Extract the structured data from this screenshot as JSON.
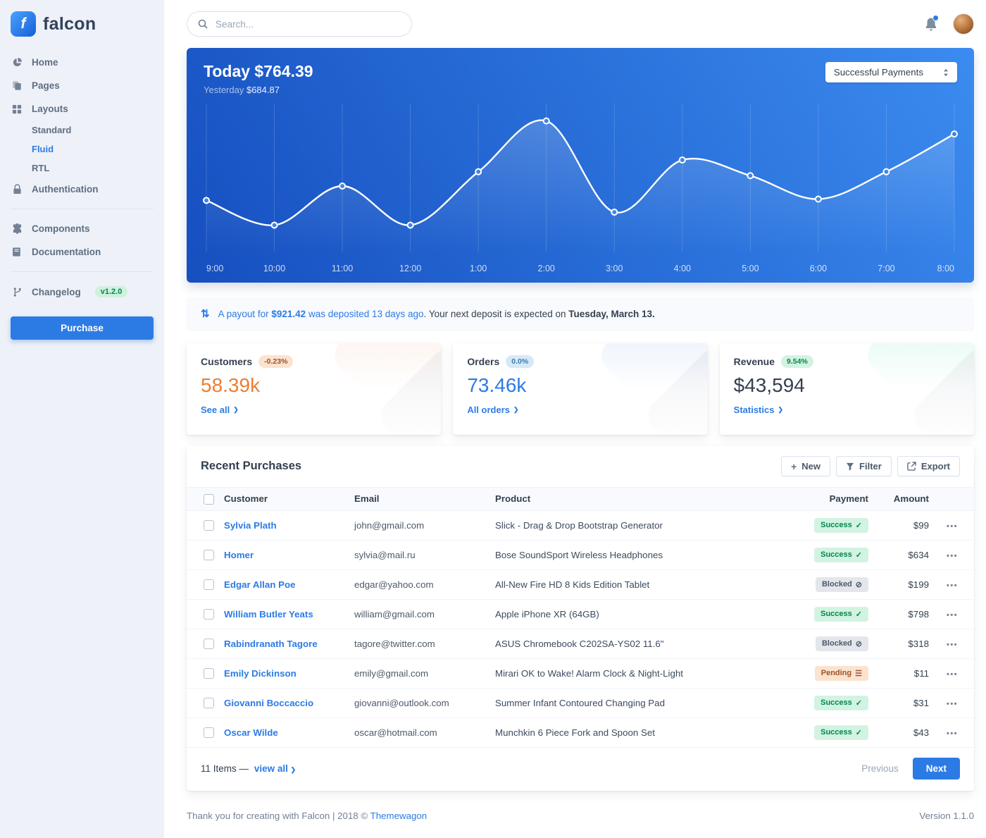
{
  "brand": {
    "name": "falcon"
  },
  "topbar": {
    "search_placeholder": "Search..."
  },
  "sidebar": {
    "items": [
      {
        "label": "Home"
      },
      {
        "label": "Pages"
      },
      {
        "label": "Layouts"
      },
      {
        "label": "Standard"
      },
      {
        "label": "Fluid"
      },
      {
        "label": "RTL"
      },
      {
        "label": "Authentication"
      },
      {
        "label": "Components"
      },
      {
        "label": "Documentation"
      },
      {
        "label": "Changelog",
        "badge": "v1.2.0"
      }
    ],
    "purchase": "Purchase"
  },
  "hero": {
    "title_label": "Today",
    "title_value": "$764.39",
    "subtitle_label": "Yesterday",
    "subtitle_value": "$684.87",
    "select_value": "Successful Payments"
  },
  "chart_data": {
    "type": "line",
    "title": "Today $764.39",
    "subtitle": "Yesterday $684.87",
    "series_name": "Successful Payments",
    "x": [
      "9:00",
      "10:00",
      "11:00",
      "12:00",
      "1:00",
      "2:00",
      "3:00",
      "4:00",
      "5:00",
      "6:00",
      "7:00",
      "8:00"
    ],
    "values": [
      35,
      16,
      46,
      16,
      57,
      96,
      26,
      66,
      54,
      36,
      57,
      86
    ],
    "ylim": [
      0,
      105
    ],
    "grid": "vertical",
    "legend": "none"
  },
  "payout": {
    "prefix": "A payout for ",
    "amount": "$921.42",
    "middle": " was deposited 13 days ago",
    "rest": ". Your next deposit is expected on ",
    "date": "Tuesday, March 13."
  },
  "stats": {
    "cards": [
      {
        "title": "Customers",
        "badge": "-0.23%",
        "value": "58.39k",
        "link": "See all",
        "color": "#ee7d33",
        "badge_bg": "#fbe3cf",
        "badge_color": "#9d5228",
        "tint": "#f5803e"
      },
      {
        "title": "Orders",
        "badge": "0.0%",
        "value": "73.46k",
        "link": "All orders",
        "color": "#2c7be5",
        "badge_bg": "#d6e9f7",
        "badge_color": "#3b7ca8",
        "tint": "#2c7be5"
      },
      {
        "title": "Revenue",
        "badge": "9.54%",
        "value": "$43,594",
        "link": "Statistics",
        "color": "#344050",
        "badge_bg": "#d2f3e1",
        "badge_color": "#00864e",
        "tint": "#00d27a"
      }
    ]
  },
  "purchases": {
    "title": "Recent Purchases",
    "buttons": {
      "new": "New",
      "filter": "Filter",
      "export": "Export"
    },
    "columns": [
      "Customer",
      "Email",
      "Product",
      "Payment",
      "Amount"
    ],
    "rows": [
      {
        "customer": "Sylvia Plath",
        "email": "john@gmail.com",
        "product": "Slick - Drag & Drop Bootstrap Generator",
        "payment": "Success",
        "status": "success",
        "amount": "$99"
      },
      {
        "customer": "Homer",
        "email": "sylvia@mail.ru",
        "product": "Bose SoundSport Wireless Headphones",
        "payment": "Success",
        "status": "success",
        "amount": "$634"
      },
      {
        "customer": "Edgar Allan Poe",
        "email": "edgar@yahoo.com",
        "product": "All-New Fire HD 8 Kids Edition Tablet",
        "payment": "Blocked",
        "status": "blocked",
        "amount": "$199"
      },
      {
        "customer": "William Butler Yeats",
        "email": "william@gmail.com",
        "product": "Apple iPhone XR (64GB)",
        "payment": "Success",
        "status": "success",
        "amount": "$798"
      },
      {
        "customer": "Rabindranath Tagore",
        "email": "tagore@twitter.com",
        "product": "ASUS Chromebook C202SA-YS02 11.6\"",
        "payment": "Blocked",
        "status": "blocked",
        "amount": "$318"
      },
      {
        "customer": "Emily Dickinson",
        "email": "emily@gmail.com",
        "product": "Mirari OK to Wake! Alarm Clock & Night-Light",
        "payment": "Pending",
        "status": "pending",
        "amount": "$11"
      },
      {
        "customer": "Giovanni Boccaccio",
        "email": "giovanni@outlook.com",
        "product": "Summer Infant Contoured Changing Pad",
        "payment": "Success",
        "status": "success",
        "amount": "$31"
      },
      {
        "customer": "Oscar Wilde",
        "email": "oscar@hotmail.com",
        "product": "Munchkin 6 Piece Fork and Spoon Set",
        "payment": "Success",
        "status": "success",
        "amount": "$43"
      }
    ],
    "footer": {
      "items": "11 Items",
      "dash": "—",
      "view_all": "view all",
      "previous": "Previous",
      "next": "Next"
    }
  },
  "footer": {
    "left": "Thank you for creating with Falcon | 2018 ©",
    "brand_link": "Themewagon",
    "version": "Version 1.1.0"
  },
  "icons": {
    "chevron_right": "❯",
    "exchange": "⇅",
    "dots": "•••",
    "plus": "+",
    "success": "✓",
    "blocked": "⊘",
    "pending": "☰"
  },
  "colors": {
    "accent": "#2c7be5",
    "success_text": "#00864e",
    "warning": "#f5803e",
    "hero_gradient_start": "#164fc0",
    "hero_gradient_end": "#3b8bf0"
  }
}
